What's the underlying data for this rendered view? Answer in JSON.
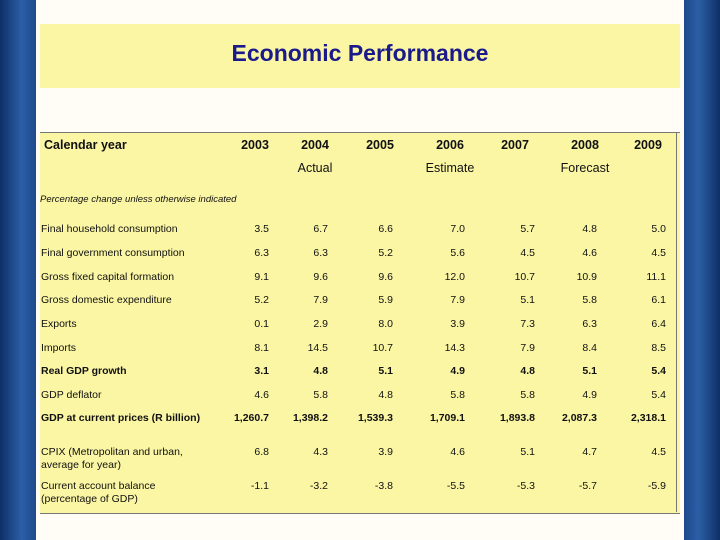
{
  "title": "Economic Performance",
  "table": {
    "header": {
      "label": "Calendar year",
      "years": [
        "2003",
        "2004",
        "2005",
        "2006",
        "2007",
        "2008",
        "2009"
      ],
      "groups": [
        "Actual",
        "Estimate",
        "Forecast"
      ]
    },
    "note": "Percentage change unless otherwise indicated",
    "rows": [
      {
        "label": "Final household consumption",
        "values": [
          "3.5",
          "6.7",
          "6.6",
          "7.0",
          "5.7",
          "4.8",
          "5.0"
        ],
        "bold": false
      },
      {
        "label": "Final government consumption",
        "values": [
          "6.3",
          "6.3",
          "5.2",
          "5.6",
          "4.5",
          "4.6",
          "4.5"
        ],
        "bold": false
      },
      {
        "label": "Gross fixed capital formation",
        "values": [
          "9.1",
          "9.6",
          "9.6",
          "12.0",
          "10.7",
          "10.9",
          "11.1"
        ],
        "bold": false
      },
      {
        "label": "Gross domestic expenditure",
        "values": [
          "5.2",
          "7.9",
          "5.9",
          "7.9",
          "5.1",
          "5.8",
          "6.1"
        ],
        "bold": false
      },
      {
        "label": "Exports",
        "values": [
          "0.1",
          "2.9",
          "8.0",
          "3.9",
          "7.3",
          "6.3",
          "6.4"
        ],
        "bold": false
      },
      {
        "label": "Imports",
        "values": [
          "8.1",
          "14.5",
          "10.7",
          "14.3",
          "7.9",
          "8.4",
          "8.5"
        ],
        "bold": false
      },
      {
        "label": "Real GDP growth",
        "values": [
          "3.1",
          "4.8",
          "5.1",
          "4.9",
          "4.8",
          "5.1",
          "5.4"
        ],
        "bold": true
      },
      {
        "label": "GDP deflator",
        "values": [
          "4.6",
          "5.8",
          "4.8",
          "5.8",
          "5.8",
          "4.9",
          "5.4"
        ],
        "bold": false
      },
      {
        "label": "GDP at current prices (R billion)",
        "values": [
          "1,260.7",
          "1,398.2",
          "1,539.3",
          "1,709.1",
          "1,893.8",
          "2,087.3",
          "2,318.1"
        ],
        "bold": true
      },
      {
        "label": "CPIX (Metropolitan and urban, average for year)",
        "values": [
          "6.8",
          "4.3",
          "3.9",
          "4.6",
          "5.1",
          "4.7",
          "4.5"
        ],
        "bold": false
      },
      {
        "label": "Current account balance (percentage of GDP)",
        "values": [
          "-1.1",
          "-3.2",
          "-3.8",
          "-5.5",
          "-5.3",
          "-5.7",
          "-5.9"
        ],
        "bold": false
      }
    ]
  }
}
